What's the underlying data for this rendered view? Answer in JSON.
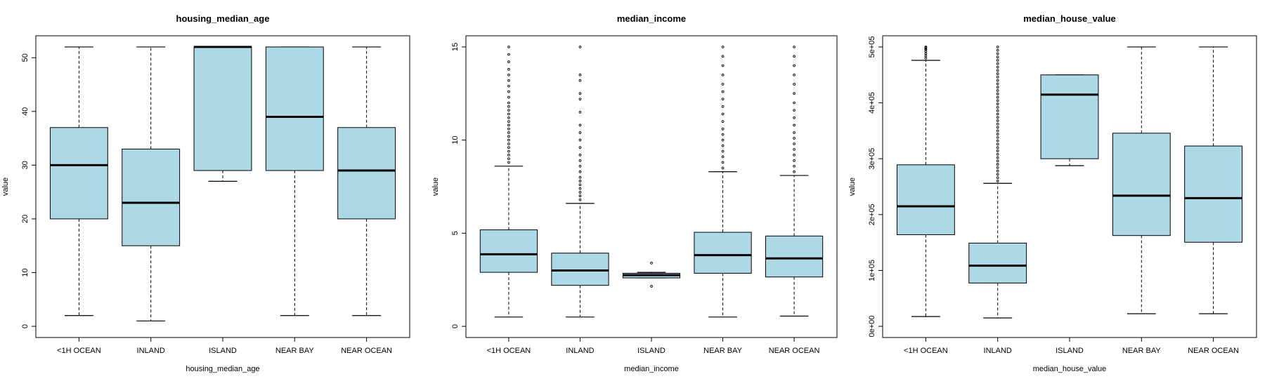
{
  "chart_data": [
    {
      "type": "boxplot",
      "title": "housing_median_age",
      "xlabel": "housing_median_age",
      "ylabel": "value",
      "categories": [
        "<1H OCEAN",
        "INLAND",
        "ISLAND",
        "NEAR BAY",
        "NEAR OCEAN"
      ],
      "ylim": [
        0,
        52
      ],
      "yticks": [
        0,
        10,
        20,
        30,
        40,
        50
      ],
      "ytick_labels": [
        "0",
        "10",
        "20",
        "30",
        "40",
        "50"
      ],
      "box_color": "#add8e6",
      "boxes": [
        {
          "whisker_low": 2,
          "q1": 20,
          "median": 30,
          "q3": 37,
          "whisker_high": 52,
          "outliers": []
        },
        {
          "whisker_low": 1,
          "q1": 15,
          "median": 23,
          "q3": 33,
          "whisker_high": 52,
          "outliers": []
        },
        {
          "whisker_low": 27,
          "q1": 29,
          "median": 52,
          "q3": 52,
          "whisker_high": 52,
          "outliers": []
        },
        {
          "whisker_low": 2,
          "q1": 29,
          "median": 39,
          "q3": 52,
          "whisker_high": 52,
          "outliers": []
        },
        {
          "whisker_low": 2,
          "q1": 20,
          "median": 29,
          "q3": 37,
          "whisker_high": 52,
          "outliers": []
        }
      ]
    },
    {
      "type": "boxplot",
      "title": "median_income",
      "xlabel": "median_income",
      "ylabel": "value",
      "categories": [
        "<1H OCEAN",
        "INLAND",
        "ISLAND",
        "NEAR BAY",
        "NEAR OCEAN"
      ],
      "ylim": [
        0,
        15
      ],
      "yticks": [
        0,
        5,
        10,
        15
      ],
      "ytick_labels": [
        "0",
        "5",
        "10",
        "15"
      ],
      "box_color": "#add8e6",
      "boxes": [
        {
          "whisker_low": 0.5,
          "q1": 2.9,
          "median": 3.87,
          "q3": 5.18,
          "whisker_high": 8.6,
          "outliers": [
            8.8,
            9.0,
            9.2,
            9.4,
            9.6,
            9.8,
            10.0,
            10.2,
            10.4,
            10.6,
            10.8,
            11.0,
            11.2,
            11.4,
            11.6,
            11.8,
            12.0,
            12.3,
            12.6,
            12.9,
            13.2,
            13.5,
            13.8,
            14.2,
            14.6,
            15.0
          ]
        },
        {
          "whisker_low": 0.5,
          "q1": 2.2,
          "median": 3.0,
          "q3": 3.93,
          "whisker_high": 6.6,
          "outliers": [
            6.8,
            7.0,
            7.2,
            7.4,
            7.6,
            7.8,
            8.0,
            8.3,
            8.6,
            8.9,
            9.2,
            9.6,
            10.0,
            10.4,
            10.8,
            11.5,
            12.2,
            12.5,
            13.2,
            13.5,
            15.0
          ]
        },
        {
          "whisker_low": 2.6,
          "q1": 2.6,
          "median": 2.75,
          "q3": 2.85,
          "whisker_high": 2.9,
          "outliers": [
            2.15,
            3.4
          ]
        },
        {
          "whisker_low": 0.5,
          "q1": 2.85,
          "median": 3.82,
          "q3": 5.05,
          "whisker_high": 8.3,
          "outliers": [
            8.5,
            8.8,
            9.1,
            9.4,
            9.7,
            10.0,
            10.3,
            10.6,
            11.0,
            11.4,
            11.8,
            12.2,
            12.6,
            13.0,
            13.5,
            14.0,
            14.5,
            15.0
          ]
        },
        {
          "whisker_low": 0.55,
          "q1": 2.65,
          "median": 3.65,
          "q3": 4.85,
          "whisker_high": 8.1,
          "outliers": [
            8.3,
            8.6,
            8.9,
            9.2,
            9.5,
            9.8,
            10.1,
            10.4,
            10.8,
            11.2,
            11.6,
            12.0,
            12.5,
            13.0,
            13.5,
            14.0,
            14.5,
            15.0
          ]
        }
      ]
    },
    {
      "type": "boxplot",
      "title": "median_house_value",
      "xlabel": "median_house_value",
      "ylabel": "value",
      "categories": [
        "<1H OCEAN",
        "INLAND",
        "ISLAND",
        "NEAR BAY",
        "NEAR OCEAN"
      ],
      "ylim": [
        0,
        500000
      ],
      "yticks": [
        0,
        100000,
        200000,
        300000,
        400000,
        500000
      ],
      "ytick_labels": [
        "0e+00",
        "1e+05",
        "2e+05",
        "3e+05",
        "4e+05",
        "5e+05"
      ],
      "box_color": "#add8e6",
      "boxes": [
        {
          "whisker_low": 17500,
          "q1": 164000,
          "median": 214900,
          "q3": 289100,
          "whisker_high": 476000,
          "outliers": [
            480000,
            484000,
            488000,
            492000,
            495000,
            497000,
            499000,
            500001
          ]
        },
        {
          "whisker_low": 14999,
          "q1": 77500,
          "median": 108500,
          "q3": 148950,
          "whisker_high": 256000,
          "outliers": [
            260000,
            266000,
            272000,
            278000,
            284000,
            290000,
            296000,
            302000,
            308000,
            314000,
            320000,
            326000,
            332000,
            338000,
            344000,
            350000,
            356000,
            362000,
            368000,
            374000,
            380000,
            386000,
            392000,
            398000,
            404000,
            410000,
            416000,
            422000,
            428000,
            434000,
            440000,
            446000,
            452000,
            458000,
            464000,
            470000,
            476000,
            482000,
            488000,
            494000,
            500001
          ]
        },
        {
          "whisker_low": 287500,
          "q1": 300000,
          "median": 414700,
          "q3": 450000,
          "whisker_high": 450000,
          "outliers": []
        },
        {
          "whisker_low": 22500,
          "q1": 162500,
          "median": 233800,
          "q3": 345700,
          "whisker_high": 500001,
          "outliers": []
        },
        {
          "whisker_low": 22500,
          "q1": 150500,
          "median": 229450,
          "q3": 322750,
          "whisker_high": 500001,
          "outliers": []
        }
      ]
    }
  ]
}
